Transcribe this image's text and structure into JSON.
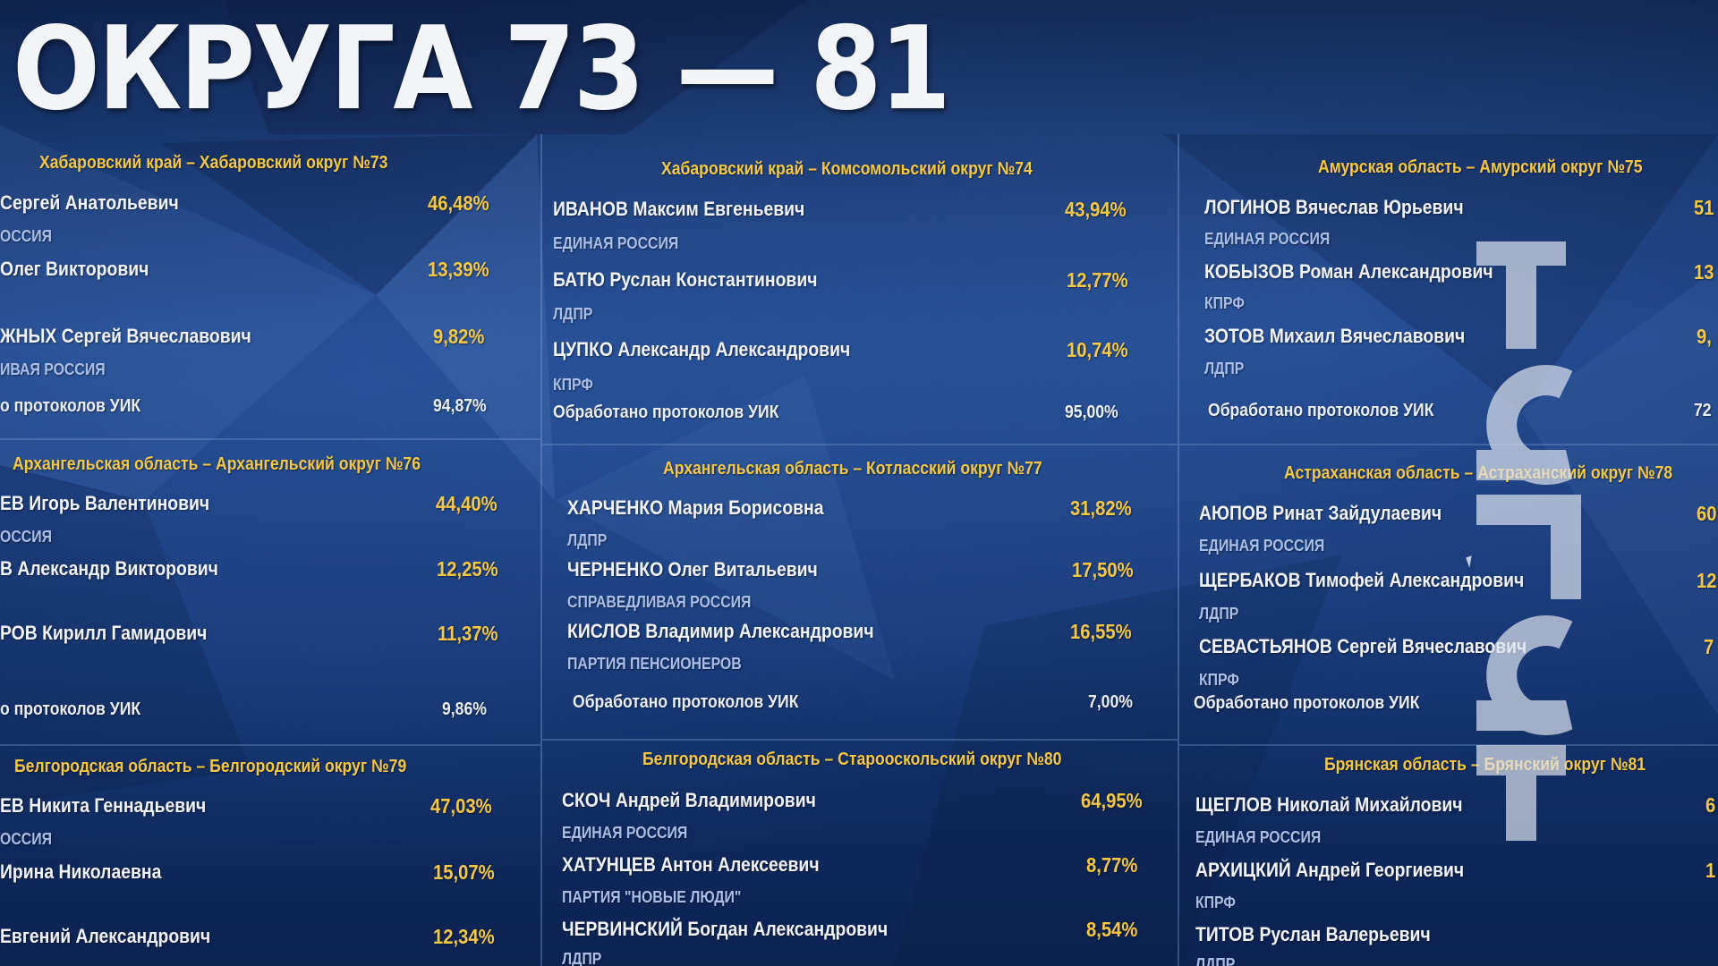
{
  "title": "ОКРУГА 73 — 81",
  "districts": [
    {
      "header": "Хабаровский край – Хабаровский округ №73",
      "candidates": [
        {
          "name": "Сергей Анатольевич",
          "party": "ОССИЯ",
          "pct": "46,48%"
        },
        {
          "name": "Олег Викторович",
          "party": "",
          "pct": "13,39%"
        },
        {
          "name": "ЖНЫХ Сергей Вячеславович",
          "party": "ИВАЯ РОССИЯ",
          "pct": "9,82%"
        }
      ],
      "protocols_label": "о протоколов УИК",
      "protocols_pct": "94,87%"
    },
    {
      "header": "Хабаровский край – Комсомольский округ №74",
      "candidates": [
        {
          "name": "ИВАНОВ Максим Евгеньевич",
          "party": "ЕДИНАЯ РОССИЯ",
          "pct": "43,94%"
        },
        {
          "name": "БАТЮ Руслан Константинович",
          "party": "ЛДПР",
          "pct": "12,77%"
        },
        {
          "name": "ЦУПКО Александр Александрович",
          "party": "КПРФ",
          "pct": "10,74%"
        }
      ],
      "protocols_label": "Обработано протоколов УИК",
      "protocols_pct": "95,00%"
    },
    {
      "header": "Амурская область – Амурский округ №75",
      "candidates": [
        {
          "name": "ЛОГИНОВ Вячеслав Юрьевич",
          "party": "ЕДИНАЯ РОССИЯ",
          "pct": "51"
        },
        {
          "name": "КОБЫЗОВ Роман Александрович",
          "party": "КПРФ",
          "pct": "13"
        },
        {
          "name": "ЗОТОВ Михаил Вячеславович",
          "party": "ЛДПР",
          "pct": "9,"
        }
      ],
      "protocols_label": "Обработано протоколов УИК",
      "protocols_pct": "72"
    },
    {
      "header": "Архангельская область – Архангельский округ №76",
      "candidates": [
        {
          "name": "ЕВ Игорь Валентинович",
          "party": "ОССИЯ",
          "pct": "44,40%"
        },
        {
          "name": "В Александр Викторович",
          "party": "",
          "pct": "12,25%"
        },
        {
          "name": "РОВ Кирилл Гамидович",
          "party": "",
          "pct": "11,37%"
        }
      ],
      "protocols_label": "о протоколов УИК",
      "protocols_pct": "9,86%"
    },
    {
      "header": "Архангельская область – Котласский округ №77",
      "candidates": [
        {
          "name": "ХАРЧЕНКО Мария Борисовна",
          "party": "ЛДПР",
          "pct": "31,82%"
        },
        {
          "name": "ЧЕРНЕНКО Олег Витальевич",
          "party": "СПРАВЕДЛИВАЯ РОССИЯ",
          "pct": "17,50%"
        },
        {
          "name": "КИСЛОВ Владимир Александрович",
          "party": "ПАРТИЯ ПЕНСИОНЕРОВ",
          "pct": "16,55%"
        }
      ],
      "protocols_label": "Обработано протоколов УИК",
      "protocols_pct": "7,00%"
    },
    {
      "header": "Астраханская область – Астраханский округ №78",
      "candidates": [
        {
          "name": "АЮПОВ Ринат Зайдулаевич",
          "party": "ЕДИНАЯ РОССИЯ",
          "pct": "60"
        },
        {
          "name": "ЩЕРБАКОВ Тимофей Александрович",
          "party": "ЛДПР",
          "pct": "12"
        },
        {
          "name": "СЕВАСТЬЯНОВ Сергей Вячеславович",
          "party": "КПРФ",
          "pct": "7"
        }
      ],
      "protocols_label": "Обработано протоколов УИК",
      "protocols_pct": ""
    },
    {
      "header": "Белгородская область – Белгородский округ №79",
      "candidates": [
        {
          "name": "ЕВ Никита Геннадьевич",
          "party": "ОССИЯ",
          "pct": "47,03%"
        },
        {
          "name": "Ирина Николаевна",
          "party": "",
          "pct": "15,07%"
        },
        {
          "name": "Евгений Александрович",
          "party": "",
          "pct": "12,34%"
        }
      ],
      "protocols_label": "",
      "protocols_pct": ""
    },
    {
      "header": "Белгородская область – Старооскольский округ №80",
      "candidates": [
        {
          "name": "СКОЧ Андрей Владимирович",
          "party": "ЕДИНАЯ РОССИЯ",
          "pct": "64,95%"
        },
        {
          "name": "ХАТУНЦЕВ Антон Алексеевич",
          "party": "ПАРТИЯ \"НОВЫЕ ЛЮДИ\"",
          "pct": "8,77%"
        },
        {
          "name": "ЧЕРВИНСКИЙ Богдан Александрович",
          "party": "ЛДПР",
          "pct": "8,54%"
        }
      ],
      "protocols_label": "",
      "protocols_pct": ""
    },
    {
      "header": "Брянская область – Брянский округ №81",
      "candidates": [
        {
          "name": "ЩЕГЛОВ Николай Михайлович",
          "party": "ЕДИНАЯ РОССИЯ",
          "pct": "6"
        },
        {
          "name": "АРХИЦКИЙ Андрей Георгиевич",
          "party": "КПРФ",
          "pct": "1"
        },
        {
          "name": "ТИТОВ Руслан Валерьевич",
          "party": "ЛДПР",
          "pct": ""
        }
      ],
      "protocols_label": "",
      "protocols_pct": ""
    }
  ],
  "watermark": {
    "text": "ТелеТ",
    "icon": "channel-logo-watermark"
  },
  "colors": {
    "accent": "#f6c744",
    "text": "#f1f3f8",
    "party": "#a9bfe8",
    "background": "#173a7a"
  }
}
